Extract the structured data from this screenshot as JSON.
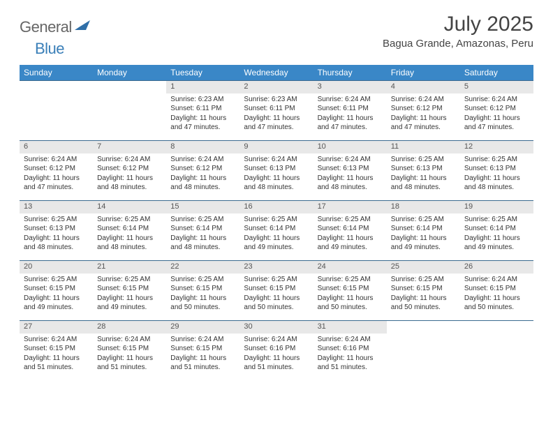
{
  "logo": {
    "text1": "General",
    "text2": "Blue"
  },
  "title": "July 2025",
  "location": "Bagua Grande, Amazonas, Peru",
  "header_bg": "#3a87c7",
  "daynum_bg": "#e8e8e8",
  "rule_color": "#3a6a8f",
  "weekdays": [
    "Sunday",
    "Monday",
    "Tuesday",
    "Wednesday",
    "Thursday",
    "Friday",
    "Saturday"
  ],
  "weeks": [
    {
      "days": [
        {
          "n": "",
          "lines": [
            "",
            "",
            "",
            ""
          ]
        },
        {
          "n": "",
          "lines": [
            "",
            "",
            "",
            ""
          ]
        },
        {
          "n": "1",
          "lines": [
            "Sunrise: 6:23 AM",
            "Sunset: 6:11 PM",
            "Daylight: 11 hours",
            "and 47 minutes."
          ]
        },
        {
          "n": "2",
          "lines": [
            "Sunrise: 6:23 AM",
            "Sunset: 6:11 PM",
            "Daylight: 11 hours",
            "and 47 minutes."
          ]
        },
        {
          "n": "3",
          "lines": [
            "Sunrise: 6:24 AM",
            "Sunset: 6:11 PM",
            "Daylight: 11 hours",
            "and 47 minutes."
          ]
        },
        {
          "n": "4",
          "lines": [
            "Sunrise: 6:24 AM",
            "Sunset: 6:12 PM",
            "Daylight: 11 hours",
            "and 47 minutes."
          ]
        },
        {
          "n": "5",
          "lines": [
            "Sunrise: 6:24 AM",
            "Sunset: 6:12 PM",
            "Daylight: 11 hours",
            "and 47 minutes."
          ]
        }
      ]
    },
    {
      "days": [
        {
          "n": "6",
          "lines": [
            "Sunrise: 6:24 AM",
            "Sunset: 6:12 PM",
            "Daylight: 11 hours",
            "and 47 minutes."
          ]
        },
        {
          "n": "7",
          "lines": [
            "Sunrise: 6:24 AM",
            "Sunset: 6:12 PM",
            "Daylight: 11 hours",
            "and 48 minutes."
          ]
        },
        {
          "n": "8",
          "lines": [
            "Sunrise: 6:24 AM",
            "Sunset: 6:12 PM",
            "Daylight: 11 hours",
            "and 48 minutes."
          ]
        },
        {
          "n": "9",
          "lines": [
            "Sunrise: 6:24 AM",
            "Sunset: 6:13 PM",
            "Daylight: 11 hours",
            "and 48 minutes."
          ]
        },
        {
          "n": "10",
          "lines": [
            "Sunrise: 6:24 AM",
            "Sunset: 6:13 PM",
            "Daylight: 11 hours",
            "and 48 minutes."
          ]
        },
        {
          "n": "11",
          "lines": [
            "Sunrise: 6:25 AM",
            "Sunset: 6:13 PM",
            "Daylight: 11 hours",
            "and 48 minutes."
          ]
        },
        {
          "n": "12",
          "lines": [
            "Sunrise: 6:25 AM",
            "Sunset: 6:13 PM",
            "Daylight: 11 hours",
            "and 48 minutes."
          ]
        }
      ]
    },
    {
      "days": [
        {
          "n": "13",
          "lines": [
            "Sunrise: 6:25 AM",
            "Sunset: 6:13 PM",
            "Daylight: 11 hours",
            "and 48 minutes."
          ]
        },
        {
          "n": "14",
          "lines": [
            "Sunrise: 6:25 AM",
            "Sunset: 6:14 PM",
            "Daylight: 11 hours",
            "and 48 minutes."
          ]
        },
        {
          "n": "15",
          "lines": [
            "Sunrise: 6:25 AM",
            "Sunset: 6:14 PM",
            "Daylight: 11 hours",
            "and 48 minutes."
          ]
        },
        {
          "n": "16",
          "lines": [
            "Sunrise: 6:25 AM",
            "Sunset: 6:14 PM",
            "Daylight: 11 hours",
            "and 49 minutes."
          ]
        },
        {
          "n": "17",
          "lines": [
            "Sunrise: 6:25 AM",
            "Sunset: 6:14 PM",
            "Daylight: 11 hours",
            "and 49 minutes."
          ]
        },
        {
          "n": "18",
          "lines": [
            "Sunrise: 6:25 AM",
            "Sunset: 6:14 PM",
            "Daylight: 11 hours",
            "and 49 minutes."
          ]
        },
        {
          "n": "19",
          "lines": [
            "Sunrise: 6:25 AM",
            "Sunset: 6:14 PM",
            "Daylight: 11 hours",
            "and 49 minutes."
          ]
        }
      ]
    },
    {
      "days": [
        {
          "n": "20",
          "lines": [
            "Sunrise: 6:25 AM",
            "Sunset: 6:15 PM",
            "Daylight: 11 hours",
            "and 49 minutes."
          ]
        },
        {
          "n": "21",
          "lines": [
            "Sunrise: 6:25 AM",
            "Sunset: 6:15 PM",
            "Daylight: 11 hours",
            "and 49 minutes."
          ]
        },
        {
          "n": "22",
          "lines": [
            "Sunrise: 6:25 AM",
            "Sunset: 6:15 PM",
            "Daylight: 11 hours",
            "and 50 minutes."
          ]
        },
        {
          "n": "23",
          "lines": [
            "Sunrise: 6:25 AM",
            "Sunset: 6:15 PM",
            "Daylight: 11 hours",
            "and 50 minutes."
          ]
        },
        {
          "n": "24",
          "lines": [
            "Sunrise: 6:25 AM",
            "Sunset: 6:15 PM",
            "Daylight: 11 hours",
            "and 50 minutes."
          ]
        },
        {
          "n": "25",
          "lines": [
            "Sunrise: 6:25 AM",
            "Sunset: 6:15 PM",
            "Daylight: 11 hours",
            "and 50 minutes."
          ]
        },
        {
          "n": "26",
          "lines": [
            "Sunrise: 6:24 AM",
            "Sunset: 6:15 PM",
            "Daylight: 11 hours",
            "and 50 minutes."
          ]
        }
      ]
    },
    {
      "days": [
        {
          "n": "27",
          "lines": [
            "Sunrise: 6:24 AM",
            "Sunset: 6:15 PM",
            "Daylight: 11 hours",
            "and 51 minutes."
          ]
        },
        {
          "n": "28",
          "lines": [
            "Sunrise: 6:24 AM",
            "Sunset: 6:15 PM",
            "Daylight: 11 hours",
            "and 51 minutes."
          ]
        },
        {
          "n": "29",
          "lines": [
            "Sunrise: 6:24 AM",
            "Sunset: 6:15 PM",
            "Daylight: 11 hours",
            "and 51 minutes."
          ]
        },
        {
          "n": "30",
          "lines": [
            "Sunrise: 6:24 AM",
            "Sunset: 6:16 PM",
            "Daylight: 11 hours",
            "and 51 minutes."
          ]
        },
        {
          "n": "31",
          "lines": [
            "Sunrise: 6:24 AM",
            "Sunset: 6:16 PM",
            "Daylight: 11 hours",
            "and 51 minutes."
          ]
        },
        {
          "n": "",
          "lines": [
            "",
            "",
            "",
            ""
          ]
        },
        {
          "n": "",
          "lines": [
            "",
            "",
            "",
            ""
          ]
        }
      ]
    }
  ]
}
